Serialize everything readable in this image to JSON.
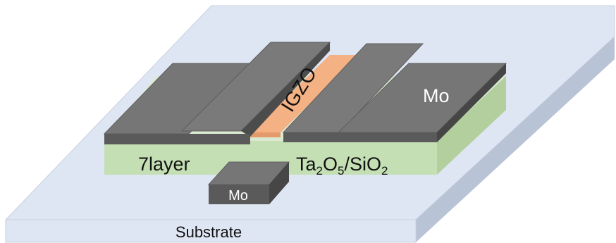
{
  "labels": {
    "igzo": "IGZO",
    "mo_top": "Mo",
    "layer_left": "7layer",
    "dielectric": {
      "ta": "Ta",
      "ta_sub": "2",
      "o1": "O",
      "o1_sub": "5",
      "slash_si": "/SiO",
      "o2_sub": "2"
    },
    "mo_gate": "Mo",
    "substrate": "Substrate"
  },
  "colors": {
    "substrate_top": "#dfe6f3",
    "substrate_edge": "#b9c3d6",
    "dielectric_front": "#c5dfb4",
    "dielectric_top": "#d9ead0",
    "igzo": "#f4b184",
    "metal_top": "#767676",
    "metal_front": "#5a5a5a",
    "metal_edge": "#464646"
  }
}
